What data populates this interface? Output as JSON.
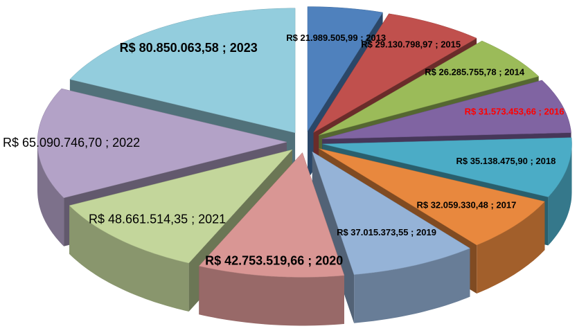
{
  "chart_data": {
    "type": "pie",
    "categories": [
      "2013",
      "2015",
      "2014",
      "2016",
      "2018",
      "2017",
      "2019",
      "2020",
      "2021",
      "2022",
      "2023"
    ],
    "values": [
      21989505.99,
      29130798.97,
      26285755.78,
      31573453.66,
      35138475.9,
      32059330.48,
      37015373.55,
      42753519.66,
      48661514.35,
      65090746.7,
      80850063.58
    ],
    "value_labels": [
      "R$ 21.989.505,99",
      "R$ 29.130.798,97",
      "R$ 26.285.755,78",
      "R$ 31.573.453,66",
      "R$ 35.138.475,90",
      "R$ 32.059.330,48",
      "R$ 37.015.373,55",
      "R$ 42.753.519,66",
      "R$ 48.661.514,35",
      "R$ 65.090.746,70",
      "R$ 80.850.063,58"
    ],
    "label_separator": " ; ",
    "colors": [
      "#4f81bd",
      "#c0504d",
      "#9bbb59",
      "#8064a2",
      "#4bacc6",
      "#e8883e",
      "#95b3d7",
      "#d99694",
      "#c3d69b",
      "#b3a2c7",
      "#93cddd"
    ]
  }
}
